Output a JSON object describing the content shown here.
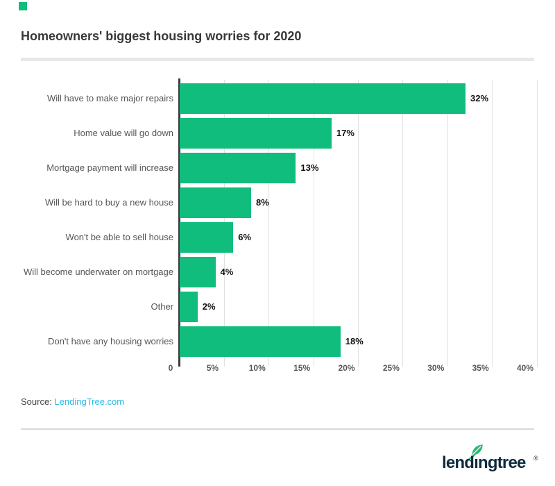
{
  "header": {
    "title": "Homeowners' biggest housing worries for 2020"
  },
  "chart_data": {
    "type": "bar",
    "orientation": "horizontal",
    "title": "Homeowners' biggest housing worries for 2020",
    "categories": [
      "Will have to make major repairs",
      "Home value will go down",
      "Mortgage payment will increase",
      "Will be hard to buy a new house",
      "Won't be able to sell house",
      "Will become underwater on mortgage",
      "Other",
      "Don't have any housing worries"
    ],
    "values": [
      32,
      17,
      13,
      8,
      6,
      4,
      2,
      18
    ],
    "value_labels": [
      "32%",
      "17%",
      "13%",
      "8%",
      "6%",
      "4%",
      "2%",
      "18%"
    ],
    "x_ticks": [
      "0",
      "5%",
      "10%",
      "15%",
      "20%",
      "25%",
      "30%",
      "35%",
      "40%"
    ],
    "x_tick_values": [
      0,
      5,
      10,
      15,
      20,
      25,
      30,
      35,
      40
    ],
    "xlim": [
      0,
      40
    ],
    "xlabel": "",
    "ylabel": "",
    "legend": "none",
    "grid": "vertical",
    "bar_color": "#10bd7d",
    "gridline_color": "#e1e1e1",
    "axis_color": "#3c3c3c",
    "category_label_color": "#555555",
    "value_label_color": "#111111",
    "tick_label_color": "#58585a"
  },
  "source": {
    "prefix": "Source: ",
    "link_text": "LendingTree.com",
    "link_color": "#29b9e8"
  },
  "footer_logo": {
    "text": "lendingtree",
    "text_display": "lendıngtree",
    "registered_mark": "®",
    "text_color": "#0e2a3e",
    "leaf_color": "#2db871"
  },
  "decor": {
    "corner_square_color": "#10bd7d"
  }
}
